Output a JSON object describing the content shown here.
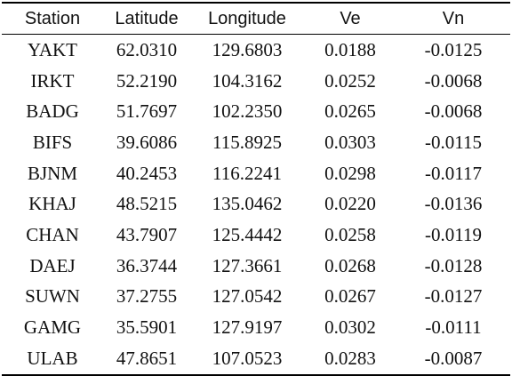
{
  "table": {
    "headers": [
      "Station",
      "Latitude",
      "Longitude",
      "Ve",
      "Vn"
    ],
    "rows": [
      [
        "YAKT",
        "62.0310",
        "129.6803",
        "0.0188",
        "-0.0125"
      ],
      [
        "IRKT",
        "52.2190",
        "104.3162",
        "0.0252",
        "-0.0068"
      ],
      [
        "BADG",
        "51.7697",
        "102.2350",
        "0.0265",
        "-0.0068"
      ],
      [
        "BIFS",
        "39.6086",
        "115.8925",
        "0.0303",
        "-0.0115"
      ],
      [
        "BJNM",
        "40.2453",
        "116.2241",
        "0.0298",
        "-0.0117"
      ],
      [
        "KHAJ",
        "48.5215",
        "135.0462",
        "0.0220",
        "-0.0136"
      ],
      [
        "CHAN",
        "43.7907",
        "125.4442",
        "0.0258",
        "-0.0119"
      ],
      [
        "DAEJ",
        "36.3744",
        "127.3661",
        "0.0268",
        "-0.0128"
      ],
      [
        "SUWN",
        "37.2755",
        "127.0542",
        "0.0267",
        "-0.0127"
      ],
      [
        "GAMG",
        "35.5901",
        "127.9197",
        "0.0302",
        "-0.0111"
      ],
      [
        "ULAB",
        "47.8651",
        "107.0523",
        "0.0283",
        "-0.0087"
      ]
    ]
  }
}
